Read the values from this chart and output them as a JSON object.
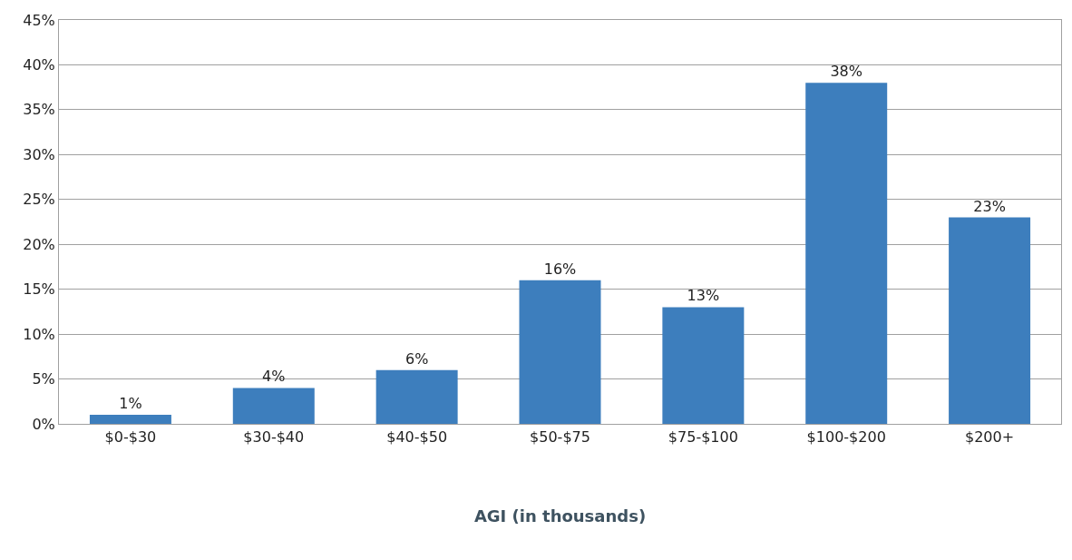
{
  "chart_data": {
    "type": "bar",
    "xlabel": "AGI (in thousands)",
    "categories": [
      "$0-$30",
      "$30-$40",
      "$40-$50",
      "$50-$75",
      "$75-$100",
      "$100-$200",
      "$200+"
    ],
    "values": [
      1,
      4,
      6,
      16,
      13,
      38,
      23
    ],
    "value_labels": [
      "1%",
      "4%",
      "6%",
      "16%",
      "13%",
      "38%",
      "23%"
    ],
    "color": "#3d7ebd",
    "ylim": [
      0,
      45
    ],
    "yticks": [
      {
        "value": 0,
        "label": "0%"
      },
      {
        "value": 5,
        "label": "5%"
      },
      {
        "value": 10,
        "label": "10%"
      },
      {
        "value": 15,
        "label": "15%"
      },
      {
        "value": 20,
        "label": "20%"
      },
      {
        "value": 25,
        "label": "25%"
      },
      {
        "value": 30,
        "label": "30%"
      },
      {
        "value": 35,
        "label": "35%"
      },
      {
        "value": 40,
        "label": "40%"
      },
      {
        "value": 45,
        "label": "45%"
      }
    ],
    "grid": "y",
    "legend": false
  }
}
